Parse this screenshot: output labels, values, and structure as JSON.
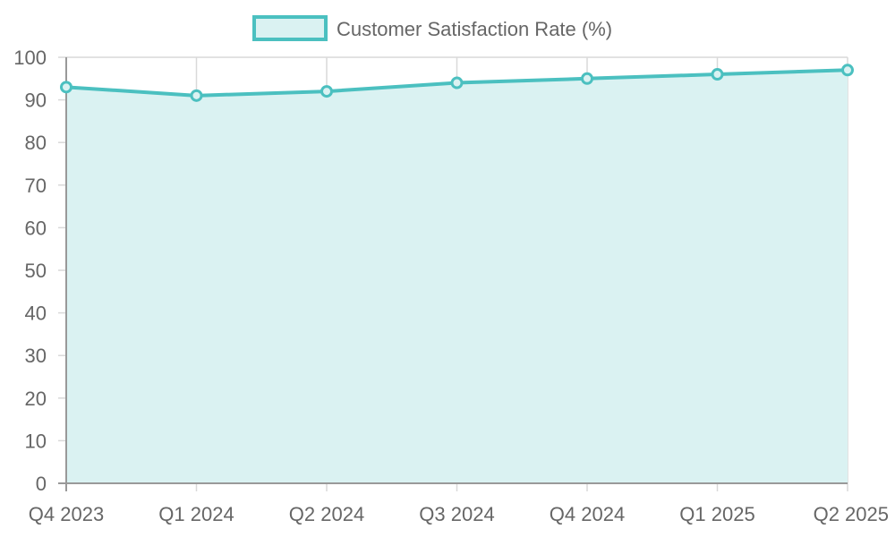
{
  "chart_data": {
    "type": "area",
    "categories": [
      "Q4 2023",
      "Q1 2024",
      "Q2 2024",
      "Q3 2024",
      "Q4 2024",
      "Q1 2025",
      "Q2 2025"
    ],
    "series": [
      {
        "name": "Customer Satisfaction Rate (%)",
        "values": [
          93,
          91,
          92,
          94,
          95,
          96,
          97
        ]
      }
    ],
    "yticks": [
      "0",
      "10",
      "20",
      "30",
      "40",
      "50",
      "60",
      "70",
      "80",
      "90",
      "100"
    ],
    "ylim": [
      0,
      100
    ],
    "grid": true,
    "legend_position": "top-center",
    "colors": {
      "line": "#4bc0c0",
      "fill": "#daf2f2",
      "grid": "#d9d9d9",
      "axis": "#999999",
      "text": "#666666"
    }
  }
}
